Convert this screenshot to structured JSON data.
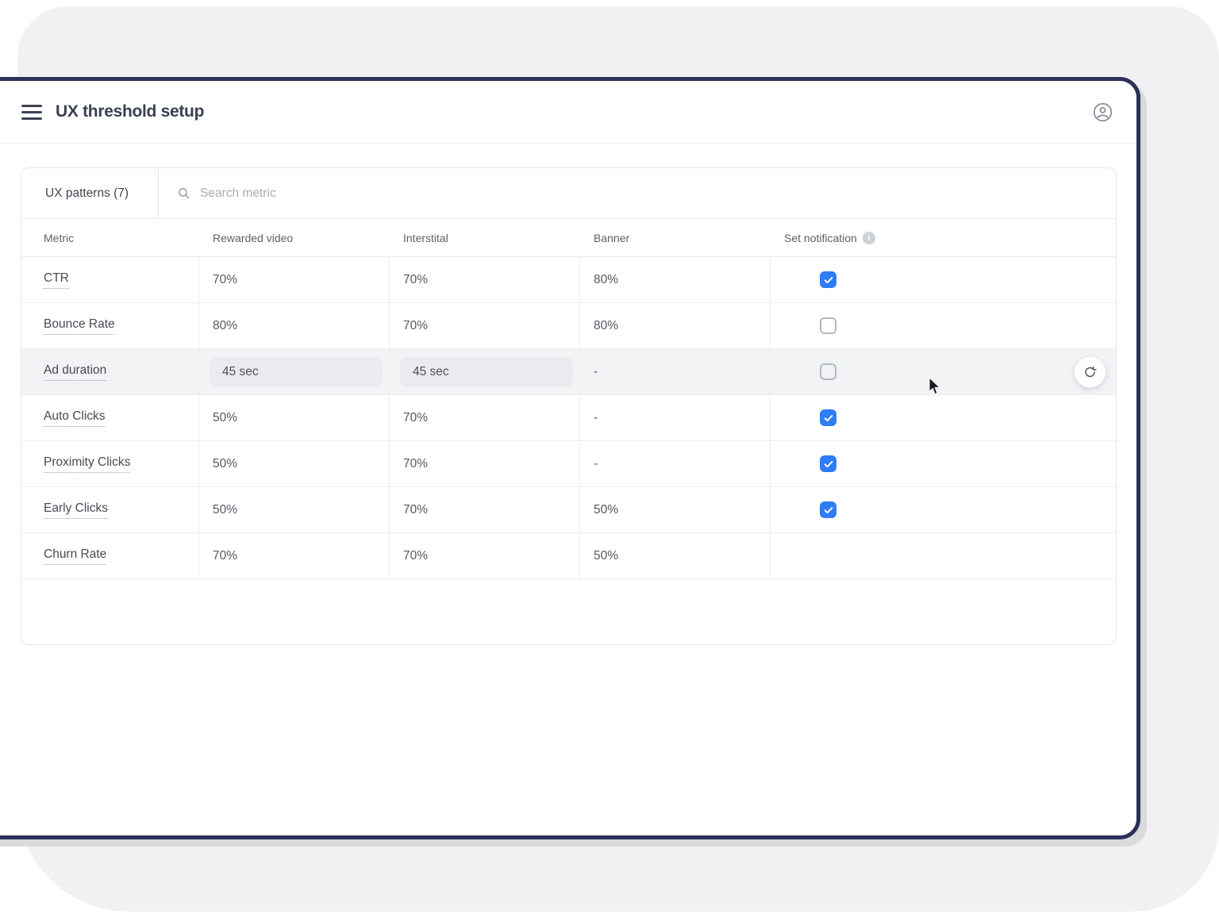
{
  "window": {
    "title": "UX threshold setup",
    "menu_icon": "hamburger-icon",
    "user_icon": "user-avatar-icon"
  },
  "panel": {
    "tab_label": "UX patterns (7)",
    "search_placeholder": "Search metric"
  },
  "table": {
    "columns": [
      {
        "label": "Metric",
        "info": false
      },
      {
        "label": "Rewarded video",
        "info": false
      },
      {
        "label": "Interstital",
        "info": false
      },
      {
        "label": "Banner",
        "info": false
      },
      {
        "label": "Set notification",
        "info": true
      }
    ],
    "rows": [
      {
        "metric": "CTR",
        "rewarded": "70%",
        "interstital": "70%",
        "banner": "80%",
        "notification": "checked",
        "editable": false,
        "highlighted": false,
        "has_refresh": false
      },
      {
        "metric": "Bounce Rate",
        "rewarded": "80%",
        "interstital": "70%",
        "banner": "80%",
        "notification": "unchecked",
        "editable": false,
        "highlighted": false,
        "has_refresh": false
      },
      {
        "metric": "Ad duration",
        "rewarded": "45 sec",
        "interstital": "45 sec",
        "banner": "-",
        "notification": "unchecked",
        "editable": true,
        "highlighted": true,
        "has_refresh": true
      },
      {
        "metric": "Auto Clicks",
        "rewarded": "50%",
        "interstital": "70%",
        "banner": "-",
        "notification": "checked",
        "editable": false,
        "highlighted": false,
        "has_refresh": false
      },
      {
        "metric": "Proximity Clicks",
        "rewarded": "50%",
        "interstital": "70%",
        "banner": "-",
        "notification": "checked",
        "editable": false,
        "highlighted": false,
        "has_refresh": false
      },
      {
        "metric": "Early Clicks",
        "rewarded": "50%",
        "interstital": "70%",
        "banner": "50%",
        "notification": "checked",
        "editable": false,
        "highlighted": false,
        "has_refresh": false
      },
      {
        "metric": "Churn Rate",
        "rewarded": "70%",
        "interstital": "70%",
        "banner": "50%",
        "notification": "none",
        "editable": false,
        "highlighted": false,
        "has_refresh": false
      }
    ]
  },
  "colors": {
    "window_border": "#2b3158",
    "accent_blue": "#2e7cf6",
    "backdrop_gray": "#f1f1f3",
    "highlight_row": "#f1f3f5",
    "title_text": "#394050"
  }
}
